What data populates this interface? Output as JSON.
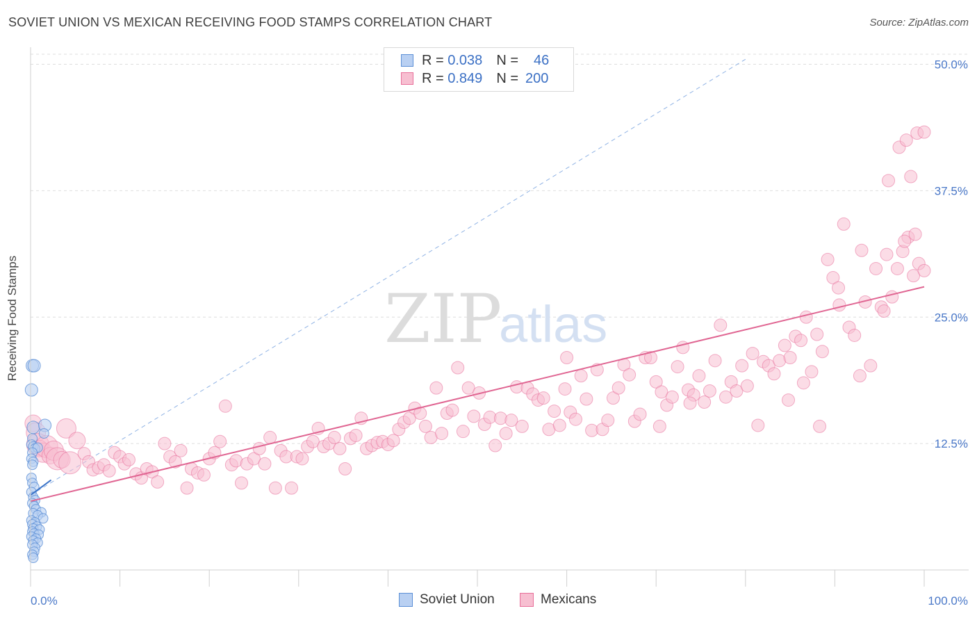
{
  "title": "SOVIET UNION VS MEXICAN RECEIVING FOOD STAMPS CORRELATION CHART",
  "source": "Source: ZipAtlas.com",
  "watermark": {
    "zip": "ZIP",
    "atlas": "atlas"
  },
  "colors": {
    "soviet": "#5b8fd6",
    "soviet_fill": "#b9d0f2",
    "mexican": "#e86f9a",
    "mexican_fill": "#f7bfd1",
    "tick": "#4a78c8"
  },
  "legend": {
    "rows": [
      {
        "r_label": "R =",
        "r_value": "0.038",
        "n_label": "N =",
        "n_value": "46"
      },
      {
        "r_label": "R =",
        "r_value": "0.849",
        "n_label": "N =",
        "n_value": "200"
      }
    ]
  },
  "bottom_legend": [
    "Soviet Union",
    "Mexicans"
  ],
  "chart_data": {
    "type": "scatter",
    "title": "SOVIET UNION VS MEXICAN RECEIVING FOOD STAMPS CORRELATION CHART",
    "xlabel": "",
    "ylabel": "Receiving Food Stamps",
    "xlim": [
      0,
      100
    ],
    "ylim": [
      0,
      51
    ],
    "x_tick_labels": [
      "0.0%",
      "100.0%"
    ],
    "y_ticks": [
      12.5,
      25.0,
      37.5,
      50.0
    ],
    "y_tick_labels": [
      "12.5%",
      "25.0%",
      "37.5%",
      "50.0%"
    ],
    "grid": true,
    "legend_position": "top-center",
    "series": [
      {
        "name": "Soviet Union",
        "r": 0.038,
        "n": 46,
        "trend": {
          "x": [
            0,
            2.3
          ],
          "y": [
            7.4,
            8.9
          ]
        },
        "trend_extended": {
          "x": [
            0,
            80
          ],
          "y": [
            7.4,
            50.5
          ]
        },
        "points": [
          [
            0.2,
            20.2
          ],
          [
            0.4,
            20.2
          ],
          [
            0.1,
            17.8
          ],
          [
            0.3,
            14.1
          ],
          [
            1.6,
            14.3
          ],
          [
            1.5,
            13.5
          ],
          [
            0.2,
            13.0
          ],
          [
            0.1,
            12.4
          ],
          [
            0.3,
            12.2
          ],
          [
            0.5,
            12.0
          ],
          [
            0.8,
            12.1
          ],
          [
            0.2,
            11.6
          ],
          [
            0.1,
            11.0
          ],
          [
            0.3,
            10.7
          ],
          [
            0.2,
            10.4
          ],
          [
            0.1,
            9.1
          ],
          [
            0.2,
            8.6
          ],
          [
            0.4,
            8.2
          ],
          [
            0.1,
            7.7
          ],
          [
            0.3,
            7.2
          ],
          [
            0.5,
            6.9
          ],
          [
            0.2,
            6.6
          ],
          [
            0.4,
            6.3
          ],
          [
            0.6,
            6.0
          ],
          [
            1.2,
            5.7
          ],
          [
            0.3,
            5.6
          ],
          [
            0.8,
            5.4
          ],
          [
            1.4,
            5.1
          ],
          [
            0.1,
            4.9
          ],
          [
            0.5,
            4.7
          ],
          [
            0.2,
            4.5
          ],
          [
            0.7,
            4.3
          ],
          [
            0.3,
            4.1
          ],
          [
            1.0,
            4.0
          ],
          [
            0.2,
            3.8
          ],
          [
            0.4,
            3.6
          ],
          [
            0.9,
            3.5
          ],
          [
            0.1,
            3.3
          ],
          [
            0.6,
            3.1
          ],
          [
            0.3,
            2.9
          ],
          [
            0.8,
            2.7
          ],
          [
            0.2,
            2.5
          ],
          [
            0.5,
            2.2
          ],
          [
            0.4,
            1.8
          ],
          [
            0.2,
            1.5
          ],
          [
            0.3,
            1.2
          ]
        ]
      },
      {
        "name": "Mexicans",
        "r": 0.849,
        "n": 200,
        "trend": {
          "x": [
            0,
            100
          ],
          "y": [
            6.8,
            28.0
          ]
        },
        "points": [
          [
            0.3,
            14.5
          ],
          [
            0.6,
            13.6
          ],
          [
            0.8,
            12.4
          ],
          [
            1.0,
            12.0
          ],
          [
            1.4,
            11.6
          ],
          [
            1.8,
            12.2
          ],
          [
            2.2,
            11.3
          ],
          [
            2.6,
            11.8
          ],
          [
            3.0,
            11.0
          ],
          [
            3.5,
            10.9
          ],
          [
            4.0,
            14.0
          ],
          [
            4.4,
            10.6
          ],
          [
            5.2,
            12.8
          ],
          [
            6.0,
            11.5
          ],
          [
            6.5,
            10.7
          ],
          [
            7.0,
            9.9
          ],
          [
            7.6,
            10.1
          ],
          [
            8.2,
            10.4
          ],
          [
            8.8,
            9.8
          ],
          [
            9.4,
            11.6
          ],
          [
            10.0,
            11.2
          ],
          [
            10.5,
            10.5
          ],
          [
            11.0,
            10.9
          ],
          [
            11.8,
            9.5
          ],
          [
            12.4,
            9.1
          ],
          [
            13.0,
            10.0
          ],
          [
            13.6,
            9.7
          ],
          [
            14.2,
            8.7
          ],
          [
            15.0,
            12.5
          ],
          [
            15.6,
            11.2
          ],
          [
            16.2,
            10.7
          ],
          [
            16.8,
            11.8
          ],
          [
            17.5,
            8.1
          ],
          [
            18.0,
            10.0
          ],
          [
            18.7,
            9.6
          ],
          [
            19.4,
            9.4
          ],
          [
            20.0,
            11.0
          ],
          [
            20.6,
            11.6
          ],
          [
            21.2,
            12.7
          ],
          [
            21.8,
            16.2
          ],
          [
            22.5,
            10.4
          ],
          [
            23.0,
            10.8
          ],
          [
            23.6,
            8.6
          ],
          [
            24.2,
            10.5
          ],
          [
            25.0,
            11.0
          ],
          [
            25.6,
            12.0
          ],
          [
            26.2,
            10.5
          ],
          [
            26.8,
            13.1
          ],
          [
            27.4,
            8.1
          ],
          [
            28.0,
            11.8
          ],
          [
            28.6,
            11.2
          ],
          [
            29.2,
            8.1
          ],
          [
            29.8,
            11.2
          ],
          [
            30.4,
            11.0
          ],
          [
            31.0,
            12.2
          ],
          [
            31.6,
            12.7
          ],
          [
            32.2,
            14.0
          ],
          [
            32.8,
            12.2
          ],
          [
            33.4,
            12.5
          ],
          [
            34.0,
            13.1
          ],
          [
            34.6,
            12.0
          ],
          [
            35.2,
            10.0
          ],
          [
            35.8,
            13.0
          ],
          [
            36.4,
            13.3
          ],
          [
            37.0,
            15.0
          ],
          [
            37.6,
            12.0
          ],
          [
            38.2,
            12.3
          ],
          [
            38.8,
            12.6
          ],
          [
            39.4,
            12.7
          ],
          [
            40.0,
            12.4
          ],
          [
            40.6,
            12.8
          ],
          [
            41.2,
            13.9
          ],
          [
            41.8,
            14.6
          ],
          [
            42.4,
            15.0
          ],
          [
            43.0,
            16.0
          ],
          [
            43.6,
            15.5
          ],
          [
            44.2,
            14.2
          ],
          [
            44.8,
            13.1
          ],
          [
            45.4,
            18.0
          ],
          [
            46.0,
            13.5
          ],
          [
            46.6,
            15.5
          ],
          [
            47.2,
            15.8
          ],
          [
            47.8,
            20.0
          ],
          [
            48.4,
            13.7
          ],
          [
            49.0,
            18.0
          ],
          [
            49.6,
            15.2
          ],
          [
            50.2,
            17.5
          ],
          [
            50.8,
            14.4
          ],
          [
            51.4,
            15.1
          ],
          [
            52.0,
            12.3
          ],
          [
            52.6,
            15.0
          ],
          [
            53.2,
            13.5
          ],
          [
            53.8,
            14.8
          ],
          [
            54.4,
            18.1
          ],
          [
            55.0,
            14.2
          ],
          [
            55.6,
            18.0
          ],
          [
            56.2,
            17.4
          ],
          [
            56.8,
            16.8
          ],
          [
            57.4,
            17.0
          ],
          [
            58.0,
            13.9
          ],
          [
            58.6,
            15.7
          ],
          [
            59.2,
            14.3
          ],
          [
            59.8,
            17.9
          ],
          [
            60.4,
            15.6
          ],
          [
            61.0,
            14.9
          ],
          [
            61.6,
            19.2
          ],
          [
            62.2,
            16.9
          ],
          [
            62.8,
            13.8
          ],
          [
            63.4,
            19.8
          ],
          [
            64.0,
            13.9
          ],
          [
            64.6,
            14.8
          ],
          [
            65.2,
            17.0
          ],
          [
            65.8,
            18.0
          ],
          [
            66.4,
            20.3
          ],
          [
            67.0,
            19.3
          ],
          [
            67.6,
            14.7
          ],
          [
            68.2,
            15.4
          ],
          [
            68.8,
            21.0
          ],
          [
            69.4,
            21.0
          ],
          [
            70.0,
            18.6
          ],
          [
            70.6,
            17.6
          ],
          [
            71.2,
            16.3
          ],
          [
            71.8,
            17.1
          ],
          [
            72.4,
            20.1
          ],
          [
            73.0,
            22.0
          ],
          [
            73.6,
            17.8
          ],
          [
            74.2,
            17.3
          ],
          [
            74.8,
            19.2
          ],
          [
            75.4,
            16.6
          ],
          [
            76.0,
            17.7
          ],
          [
            76.6,
            20.7
          ],
          [
            77.2,
            24.2
          ],
          [
            77.8,
            17.1
          ],
          [
            78.4,
            18.6
          ],
          [
            79.0,
            17.7
          ],
          [
            79.6,
            20.2
          ],
          [
            80.2,
            18.2
          ],
          [
            80.8,
            21.4
          ],
          [
            81.4,
            14.3
          ],
          [
            82.0,
            20.6
          ],
          [
            82.6,
            20.2
          ],
          [
            83.2,
            19.4
          ],
          [
            83.8,
            20.7
          ],
          [
            84.4,
            22.2
          ],
          [
            85.0,
            21.0
          ],
          [
            85.6,
            23.1
          ],
          [
            86.2,
            22.7
          ],
          [
            86.8,
            25.0
          ],
          [
            87.4,
            19.6
          ],
          [
            88.0,
            23.3
          ],
          [
            88.6,
            21.6
          ],
          [
            89.2,
            30.7
          ],
          [
            89.8,
            28.9
          ],
          [
            90.4,
            27.9
          ],
          [
            91.0,
            34.2
          ],
          [
            91.6,
            24.0
          ],
          [
            92.2,
            23.2
          ],
          [
            92.8,
            19.2
          ],
          [
            93.4,
            26.5
          ],
          [
            94.0,
            20.2
          ],
          [
            94.6,
            29.8
          ],
          [
            95.2,
            26.0
          ],
          [
            95.8,
            31.2
          ],
          [
            96.4,
            27.0
          ],
          [
            97.0,
            29.8
          ],
          [
            97.6,
            31.5
          ],
          [
            98.2,
            32.9
          ],
          [
            98.8,
            29.1
          ],
          [
            99.4,
            30.3
          ],
          [
            100.0,
            29.6
          ],
          [
            90.5,
            26.2
          ],
          [
            93.0,
            31.6
          ],
          [
            95.5,
            25.6
          ],
          [
            97.8,
            32.5
          ],
          [
            99.0,
            33.2
          ],
          [
            96.0,
            38.5
          ],
          [
            98.5,
            38.9
          ],
          [
            97.2,
            41.8
          ],
          [
            98.0,
            42.5
          ],
          [
            99.2,
            43.2
          ],
          [
            100.0,
            43.3
          ],
          [
            88.3,
            14.2
          ],
          [
            60.0,
            21.0
          ],
          [
            70.4,
            14.2
          ],
          [
            73.8,
            16.5
          ],
          [
            84.8,
            16.8
          ],
          [
            86.5,
            18.5
          ]
        ]
      }
    ]
  }
}
